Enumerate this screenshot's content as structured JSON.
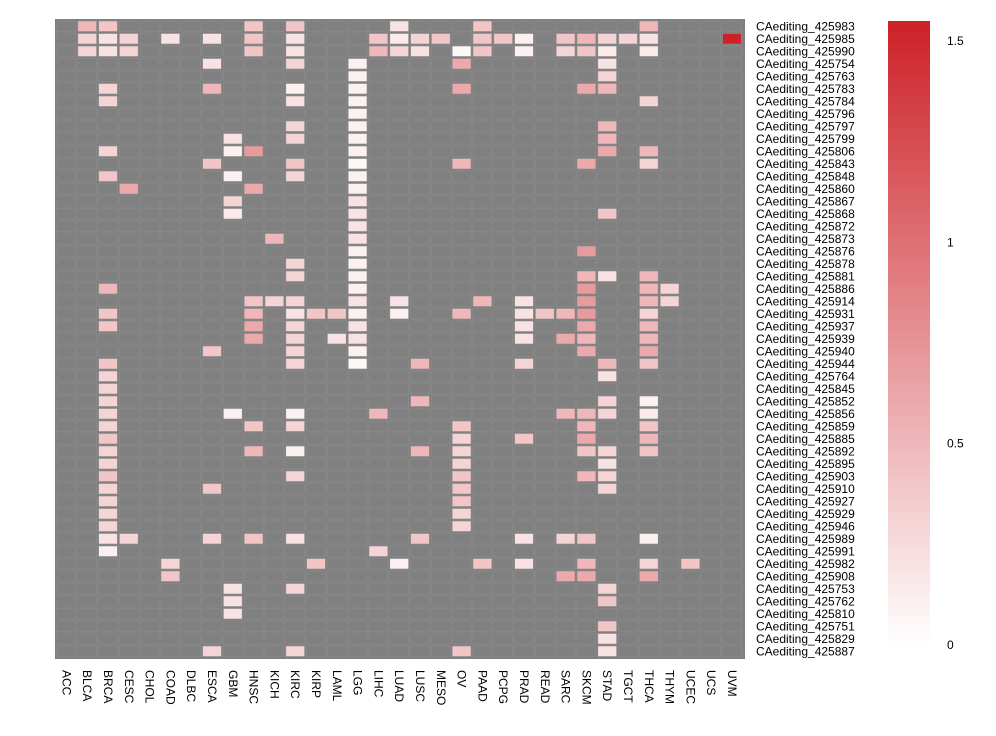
{
  "chart_data": {
    "type": "heatmap",
    "title": "",
    "xlabel": "",
    "ylabel": "",
    "columns": [
      "ACC",
      "BLCA",
      "BRCA",
      "CESC",
      "CHOL",
      "COAD",
      "DLBC",
      "ESCA",
      "GBM",
      "HNSC",
      "KICH",
      "KIRC",
      "KIRP",
      "LAML",
      "LGG",
      "LIHC",
      "LUAD",
      "LUSC",
      "MESO",
      "OV",
      "PAAD",
      "PCPG",
      "PRAD",
      "READ",
      "SARC",
      "SKCM",
      "STAD",
      "TGCT",
      "THCA",
      "THYM",
      "UCEC",
      "UCS",
      "UVM"
    ],
    "rows": [
      "CAediting_425983",
      "CAediting_425985",
      "CAediting_425990",
      "CAediting_425754",
      "CAediting_425763",
      "CAediting_425783",
      "CAediting_425784",
      "CAediting_425796",
      "CAediting_425797",
      "CAediting_425799",
      "CAediting_425806",
      "CAediting_425843",
      "CAediting_425848",
      "CAediting_425860",
      "CAediting_425867",
      "CAediting_425868",
      "CAediting_425872",
      "CAediting_425873",
      "CAediting_425876",
      "CAediting_425878",
      "CAediting_425881",
      "CAediting_425886",
      "CAediting_425914",
      "CAediting_425931",
      "CAediting_425937",
      "CAediting_425939",
      "CAediting_425940",
      "CAediting_425944",
      "CAediting_425764",
      "CAediting_425845",
      "CAediting_425852",
      "CAediting_425856",
      "CAediting_425859",
      "CAediting_425885",
      "CAediting_425892",
      "CAediting_425895",
      "CAediting_425903",
      "CAediting_425910",
      "CAediting_425927",
      "CAediting_425929",
      "CAediting_425946",
      "CAediting_425989",
      "CAediting_425991",
      "CAediting_425982",
      "CAediting_425908",
      "CAediting_425753",
      "CAediting_425762",
      "CAediting_425810",
      "CAediting_425751",
      "CAediting_425829",
      "CAediting_425887"
    ],
    "cells": [
      [
        0,
        "BLCA",
        0.5
      ],
      [
        0,
        "BRCA",
        0.4
      ],
      [
        0,
        "HNSC",
        0.4
      ],
      [
        0,
        "KIRC",
        0.4
      ],
      [
        0,
        "LUAD",
        0.2
      ],
      [
        0,
        "PAAD",
        0.4
      ],
      [
        0,
        "THCA",
        0.5
      ],
      [
        1,
        "BLCA",
        0.3
      ],
      [
        1,
        "BRCA",
        0.2
      ],
      [
        1,
        "CESC",
        0.3
      ],
      [
        1,
        "COAD",
        0.2
      ],
      [
        1,
        "ESCA",
        0.2
      ],
      [
        1,
        "HNSC",
        0.4
      ],
      [
        1,
        "KIRC",
        0.2
      ],
      [
        1,
        "LIHC",
        0.4
      ],
      [
        1,
        "LUAD",
        0.15
      ],
      [
        1,
        "LUSC",
        0.3
      ],
      [
        1,
        "MESO",
        0.4
      ],
      [
        1,
        "PAAD",
        0.4
      ],
      [
        1,
        "PCPG",
        0.4
      ],
      [
        1,
        "PRAD",
        0.1
      ],
      [
        1,
        "SARC",
        0.4
      ],
      [
        1,
        "SKCM",
        0.5
      ],
      [
        1,
        "STAD",
        0.3
      ],
      [
        1,
        "TGCT",
        0.3
      ],
      [
        1,
        "THCA",
        0.2
      ],
      [
        1,
        "UVM",
        1.55
      ],
      [
        2,
        "BLCA",
        0.3
      ],
      [
        2,
        "BRCA",
        0.2
      ],
      [
        2,
        "CESC",
        0.3
      ],
      [
        2,
        "HNSC",
        0.4
      ],
      [
        2,
        "KIRC",
        0.2
      ],
      [
        2,
        "LIHC",
        0.5
      ],
      [
        2,
        "LUAD",
        0.3
      ],
      [
        2,
        "LUSC",
        0.2
      ],
      [
        2,
        "OV",
        0.05
      ],
      [
        2,
        "PAAD",
        0.4
      ],
      [
        2,
        "PRAD",
        0.1
      ],
      [
        2,
        "SARC",
        0.3
      ],
      [
        2,
        "SKCM",
        0.4
      ],
      [
        2,
        "STAD",
        0.15
      ],
      [
        2,
        "THCA",
        0.15
      ],
      [
        3,
        "ESCA",
        0.2
      ],
      [
        3,
        "KIRC",
        0.3
      ],
      [
        3,
        "LGG",
        0.1
      ],
      [
        3,
        "OV",
        0.6
      ],
      [
        3,
        "STAD",
        0.2
      ],
      [
        4,
        "LGG",
        0.1
      ],
      [
        4,
        "STAD",
        0.3
      ],
      [
        5,
        "BRCA",
        0.3
      ],
      [
        5,
        "ESCA",
        0.5
      ],
      [
        5,
        "KIRC",
        0.1
      ],
      [
        5,
        "LGG",
        0.1
      ],
      [
        5,
        "OV",
        0.6
      ],
      [
        5,
        "SKCM",
        0.6
      ],
      [
        5,
        "STAD",
        0.5
      ],
      [
        6,
        "BRCA",
        0.3
      ],
      [
        6,
        "KIRC",
        0.2
      ],
      [
        6,
        "LGG",
        0.1
      ],
      [
        6,
        "THCA",
        0.3
      ],
      [
        7,
        "LGG",
        0.1
      ],
      [
        8,
        "KIRC",
        0.3
      ],
      [
        8,
        "LGG",
        0.1
      ],
      [
        8,
        "STAD",
        0.5
      ],
      [
        9,
        "GBM",
        0.2
      ],
      [
        9,
        "KIRC",
        0.3
      ],
      [
        9,
        "LGG",
        0.1
      ],
      [
        9,
        "STAD",
        0.5
      ],
      [
        10,
        "BRCA",
        0.3
      ],
      [
        10,
        "GBM",
        0.1
      ],
      [
        10,
        "HNSC",
        0.7
      ],
      [
        10,
        "LGG",
        0.1
      ],
      [
        10,
        "STAD",
        0.6
      ],
      [
        10,
        "THCA",
        0.5
      ],
      [
        11,
        "ESCA",
        0.4
      ],
      [
        11,
        "KIRC",
        0.4
      ],
      [
        11,
        "LGG",
        0.05
      ],
      [
        11,
        "OV",
        0.5
      ],
      [
        11,
        "SKCM",
        0.6
      ],
      [
        11,
        "THCA",
        0.3
      ],
      [
        12,
        "BRCA",
        0.4
      ],
      [
        12,
        "GBM",
        0.1
      ],
      [
        12,
        "KIRC",
        0.3
      ],
      [
        12,
        "LGG",
        0.1
      ],
      [
        13,
        "CESC",
        0.6
      ],
      [
        13,
        "HNSC",
        0.6
      ],
      [
        13,
        "LGG",
        0.1
      ],
      [
        14,
        "GBM",
        0.3
      ],
      [
        14,
        "LGG",
        0.2
      ],
      [
        15,
        "GBM",
        0.15
      ],
      [
        15,
        "LGG",
        0.2
      ],
      [
        15,
        "STAD",
        0.4
      ],
      [
        16,
        "LGG",
        0.2
      ],
      [
        17,
        "KICH",
        0.5
      ],
      [
        17,
        "LGG",
        0.2
      ],
      [
        18,
        "LGG",
        0.1
      ],
      [
        18,
        "SKCM",
        0.7
      ],
      [
        19,
        "KIRC",
        0.3
      ],
      [
        19,
        "LGG",
        0.1
      ],
      [
        20,
        "KIRC",
        0.3
      ],
      [
        20,
        "LGG",
        0.1
      ],
      [
        20,
        "SKCM",
        0.5
      ],
      [
        20,
        "STAD",
        0.2
      ],
      [
        20,
        "THCA",
        0.5
      ],
      [
        21,
        "BRCA",
        0.5
      ],
      [
        21,
        "LGG",
        0.1
      ],
      [
        21,
        "SKCM",
        0.7
      ],
      [
        21,
        "THCA",
        0.5
      ],
      [
        21,
        "THYM",
        0.3
      ],
      [
        22,
        "HNSC",
        0.4
      ],
      [
        22,
        "KICH",
        0.3
      ],
      [
        22,
        "KIRC",
        0.3
      ],
      [
        22,
        "LGG",
        0.2
      ],
      [
        22,
        "LUAD",
        0.2
      ],
      [
        22,
        "PAAD",
        0.5
      ],
      [
        22,
        "PRAD",
        0.2
      ],
      [
        22,
        "SKCM",
        0.7
      ],
      [
        22,
        "THCA",
        0.5
      ],
      [
        22,
        "THYM",
        0.3
      ],
      [
        23,
        "BRCA",
        0.4
      ],
      [
        23,
        "HNSC",
        0.5
      ],
      [
        23,
        "KIRC",
        0.2
      ],
      [
        23,
        "KIRP",
        0.4
      ],
      [
        23,
        "LAML",
        0.4
      ],
      [
        23,
        "LGG",
        0.1
      ],
      [
        23,
        "LUAD",
        0.1
      ],
      [
        23,
        "OV",
        0.5
      ],
      [
        23,
        "PRAD",
        0.2
      ],
      [
        23,
        "READ",
        0.4
      ],
      [
        23,
        "SARC",
        0.5
      ],
      [
        23,
        "SKCM",
        0.7
      ],
      [
        23,
        "THCA",
        0.3
      ],
      [
        24,
        "BRCA",
        0.4
      ],
      [
        24,
        "HNSC",
        0.6
      ],
      [
        24,
        "KIRC",
        0.3
      ],
      [
        24,
        "LGG",
        0.2
      ],
      [
        24,
        "PRAD",
        0.2
      ],
      [
        24,
        "SKCM",
        0.6
      ],
      [
        24,
        "THCA",
        0.5
      ],
      [
        25,
        "HNSC",
        0.6
      ],
      [
        25,
        "KIRC",
        0.3
      ],
      [
        25,
        "LAML",
        0.2
      ],
      [
        25,
        "LGG",
        0.2
      ],
      [
        25,
        "PRAD",
        0.2
      ],
      [
        25,
        "SARC",
        0.6
      ],
      [
        25,
        "SKCM",
        0.5
      ],
      [
        25,
        "THCA",
        0.5
      ],
      [
        26,
        "ESCA",
        0.4
      ],
      [
        26,
        "KIRC",
        0.3
      ],
      [
        26,
        "LGG",
        0.1
      ],
      [
        26,
        "SKCM",
        0.6
      ],
      [
        26,
        "THCA",
        0.6
      ],
      [
        27,
        "BRCA",
        0.4
      ],
      [
        27,
        "KIRC",
        0.3
      ],
      [
        27,
        "LGG",
        0.05
      ],
      [
        27,
        "LUSC",
        0.5
      ],
      [
        27,
        "PRAD",
        0.3
      ],
      [
        27,
        "STAD",
        0.5
      ],
      [
        27,
        "THCA",
        0.4
      ],
      [
        28,
        "BRCA",
        0.3
      ],
      [
        28,
        "STAD",
        0.2
      ],
      [
        29,
        "BRCA",
        0.3
      ],
      [
        30,
        "BRCA",
        0.3
      ],
      [
        30,
        "LUSC",
        0.5
      ],
      [
        30,
        "STAD",
        0.3
      ],
      [
        30,
        "THCA",
        0.1
      ],
      [
        31,
        "BRCA",
        0.3
      ],
      [
        31,
        "GBM",
        0.1
      ],
      [
        31,
        "KIRC",
        0.1
      ],
      [
        31,
        "LIHC",
        0.5
      ],
      [
        31,
        "SARC",
        0.5
      ],
      [
        31,
        "SKCM",
        0.5
      ],
      [
        31,
        "STAD",
        0.3
      ],
      [
        31,
        "THCA",
        0.15
      ],
      [
        32,
        "BRCA",
        0.3
      ],
      [
        32,
        "HNSC",
        0.4
      ],
      [
        32,
        "KIRC",
        0.3
      ],
      [
        32,
        "OV",
        0.4
      ],
      [
        32,
        "SKCM",
        0.5
      ],
      [
        32,
        "THCA",
        0.4
      ],
      [
        33,
        "BRCA",
        0.4
      ],
      [
        33,
        "OV",
        0.3
      ],
      [
        33,
        "PRAD",
        0.4
      ],
      [
        33,
        "SKCM",
        0.6
      ],
      [
        33,
        "THCA",
        0.5
      ],
      [
        34,
        "BRCA",
        0.3
      ],
      [
        34,
        "HNSC",
        0.5
      ],
      [
        34,
        "KIRC",
        0.1
      ],
      [
        34,
        "LUSC",
        0.5
      ],
      [
        34,
        "OV",
        0.3
      ],
      [
        34,
        "SKCM",
        0.4
      ],
      [
        34,
        "STAD",
        0.3
      ],
      [
        34,
        "THCA",
        0.4
      ],
      [
        35,
        "BRCA",
        0.3
      ],
      [
        35,
        "OV",
        0.3
      ],
      [
        35,
        "STAD",
        0.2
      ],
      [
        36,
        "BRCA",
        0.4
      ],
      [
        36,
        "KIRC",
        0.3
      ],
      [
        36,
        "OV",
        0.4
      ],
      [
        36,
        "SKCM",
        0.5
      ],
      [
        36,
        "STAD",
        0.3
      ],
      [
        37,
        "BRCA",
        0.3
      ],
      [
        37,
        "ESCA",
        0.4
      ],
      [
        37,
        "OV",
        0.4
      ],
      [
        37,
        "STAD",
        0.3
      ],
      [
        38,
        "BRCA",
        0.3
      ],
      [
        38,
        "OV",
        0.4
      ],
      [
        39,
        "BRCA",
        0.3
      ],
      [
        39,
        "OV",
        0.3
      ],
      [
        40,
        "BRCA",
        0.3
      ],
      [
        40,
        "OV",
        0.3
      ],
      [
        41,
        "BRCA",
        0.2
      ],
      [
        41,
        "CESC",
        0.3
      ],
      [
        41,
        "ESCA",
        0.3
      ],
      [
        41,
        "HNSC",
        0.4
      ],
      [
        41,
        "KIRC",
        0.2
      ],
      [
        41,
        "LUSC",
        0.4
      ],
      [
        41,
        "PRAD",
        0.2
      ],
      [
        41,
        "SARC",
        0.3
      ],
      [
        41,
        "SKCM",
        0.4
      ],
      [
        41,
        "THCA",
        0.1
      ],
      [
        42,
        "BRCA",
        0.1
      ],
      [
        42,
        "LIHC",
        0.3
      ],
      [
        43,
        "COAD",
        0.3
      ],
      [
        43,
        "KIRP",
        0.4
      ],
      [
        43,
        "LUAD",
        0.1
      ],
      [
        43,
        "PAAD",
        0.4
      ],
      [
        43,
        "PRAD",
        0.2
      ],
      [
        43,
        "SKCM",
        0.5
      ],
      [
        43,
        "THCA",
        0.3
      ],
      [
        43,
        "UCEC",
        0.4
      ],
      [
        44,
        "COAD",
        0.4
      ],
      [
        44,
        "SARC",
        0.6
      ],
      [
        44,
        "SKCM",
        0.6
      ],
      [
        44,
        "THCA",
        0.6
      ],
      [
        45,
        "GBM",
        0.2
      ],
      [
        45,
        "KIRC",
        0.3
      ],
      [
        45,
        "STAD",
        0.3
      ],
      [
        46,
        "GBM",
        0.2
      ],
      [
        46,
        "STAD",
        0.4
      ],
      [
        47,
        "GBM",
        0.2
      ],
      [
        48,
        "STAD",
        0.4
      ],
      [
        49,
        "STAD",
        0.2
      ],
      [
        50,
        "ESCA",
        0.3
      ],
      [
        50,
        "KIRC",
        0.3
      ],
      [
        50,
        "OV",
        0.4
      ],
      [
        50,
        "STAD",
        0.2
      ]
    ],
    "color_scale": {
      "min": 0,
      "max": 1.55,
      "low_color": "#ffffff",
      "high_color": "#cc2127",
      "na_color": "#808080"
    },
    "colorbar_ticks": [
      {
        "value": 1.5,
        "label": "1.5"
      },
      {
        "value": 1,
        "label": "1"
      },
      {
        "value": 0.5,
        "label": "0.5"
      },
      {
        "value": 0,
        "label": "0"
      }
    ]
  }
}
